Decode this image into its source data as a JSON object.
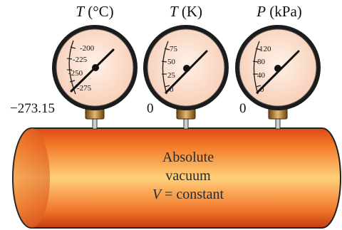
{
  "gauges": [
    {
      "id": "celsius",
      "symbol": "T",
      "unit": "(°C)",
      "ticks": [
        "-200",
        "-225",
        "-250",
        "-275"
      ],
      "zero_reading": "−273.15"
    },
    {
      "id": "kelvin",
      "symbol": "T",
      "unit": "(K)",
      "ticks": [
        "75",
        "50",
        "25",
        "0"
      ],
      "zero_reading": "0"
    },
    {
      "id": "pressure",
      "symbol": "P",
      "unit": "(kPa)",
      "ticks": [
        "120",
        "80",
        "40",
        "0"
      ],
      "zero_reading": "0"
    }
  ],
  "tank": {
    "line1": "Absolute",
    "line2": "vacuum",
    "line3_symbol": "V",
    "line3_rest": " = constant"
  },
  "colors": {
    "gauge_face": "#fbe4d5",
    "gauge_rim": "#1c1c1c",
    "needle": "#111111",
    "tank_top": "#e04a14",
    "tank_mid": "#ffd07a",
    "tank_bottom": "#c43c12",
    "fitting": "#b57f3a"
  }
}
